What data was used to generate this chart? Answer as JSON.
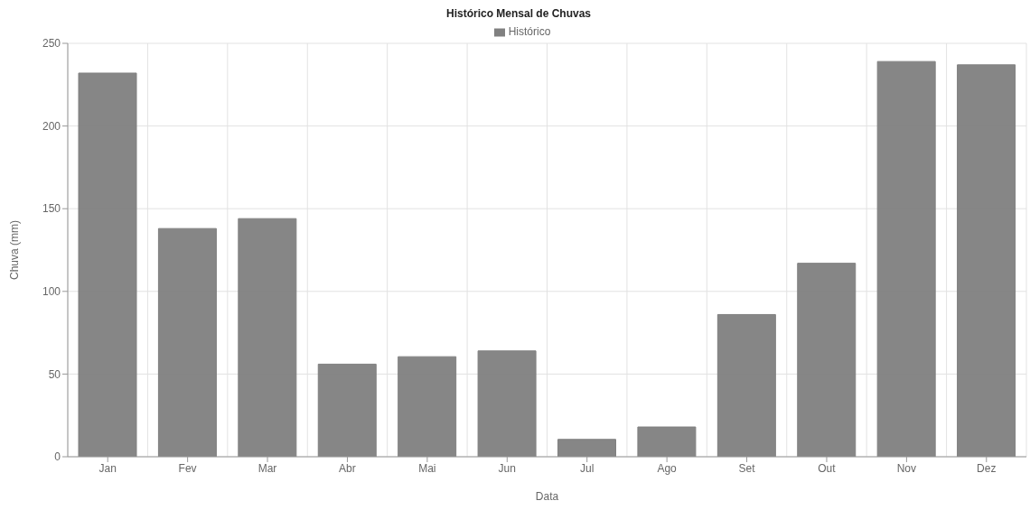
{
  "chart_data": {
    "type": "bar",
    "title": "Histórico Mensal de Chuvas",
    "xlabel": "Data",
    "ylabel": "Chuva (mm)",
    "categories": [
      "Jan",
      "Fev",
      "Mar",
      "Abr",
      "Mai",
      "Jun",
      "Jul",
      "Ago",
      "Set",
      "Out",
      "Nov",
      "Dez"
    ],
    "series": [
      {
        "name": "Histórico",
        "color": "#808080",
        "values": [
          232,
          138,
          144,
          56,
          60.5,
          64,
          10.5,
          18,
          86,
          117,
          239,
          237
        ]
      }
    ],
    "ylim": [
      0,
      250
    ],
    "yticks": [
      0,
      50,
      100,
      150,
      200,
      250
    ],
    "grid": true,
    "legend": "top"
  }
}
